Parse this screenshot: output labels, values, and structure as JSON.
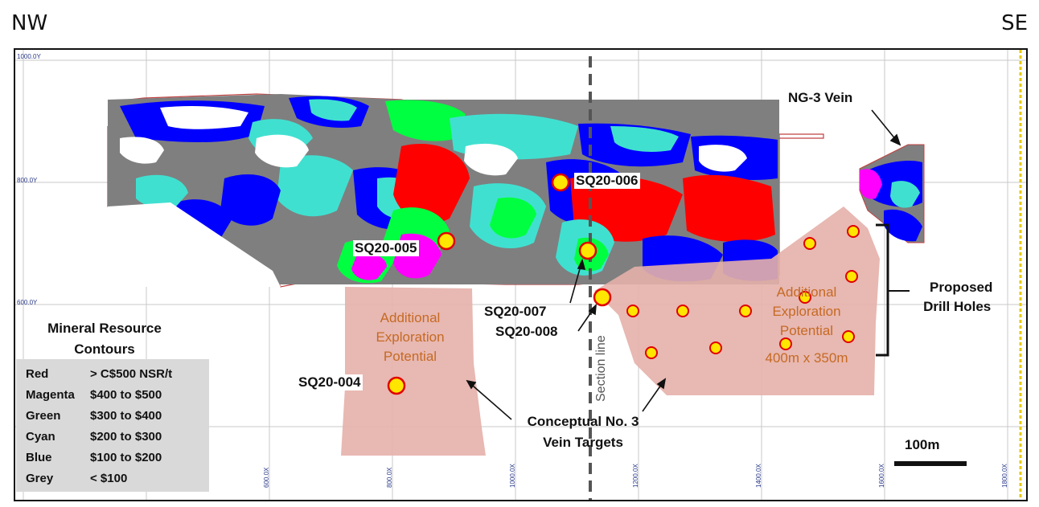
{
  "corners": {
    "left": "NW",
    "right": "SE"
  },
  "axes": {
    "y_ticks": [
      "1000.0Y",
      "800.0Y",
      "600.0Y"
    ],
    "x_ticks": [
      "600.0X",
      "800.0X",
      "1000.0X",
      "1200.0X",
      "1400.0X",
      "1600.0X",
      "1800.0X"
    ]
  },
  "labels": {
    "ng3_vein": "NG-3 Vein",
    "proposed": "Proposed",
    "drill_holes": "Drill Holes",
    "conceptual_1": "Conceptual No. 3",
    "conceptual_2": "Vein Targets",
    "section_line": "Section line",
    "scale": "100m"
  },
  "drill_holes": [
    "SQ20-004",
    "SQ20-005",
    "SQ20-006",
    "SQ20-007",
    "SQ20-008"
  ],
  "exploration_left": [
    "Additional",
    "Exploration",
    "Potential"
  ],
  "exploration_right": [
    "Additional",
    "Exploration",
    "Potential",
    "400m x 350m"
  ],
  "legend": {
    "title_1": "Mineral Resource",
    "title_2": "Contours",
    "rows": [
      {
        "name": "Red",
        "range": "> C$500 NSR/t",
        "color": "#ff0000"
      },
      {
        "name": "Magenta",
        "range": "$400 to $500",
        "color": "#ff00ff"
      },
      {
        "name": "Green",
        "range": "$300 to $400",
        "color": "#00ff40"
      },
      {
        "name": "Cyan",
        "range": "$200 to $300",
        "color": "#40e0d0"
      },
      {
        "name": "Blue",
        "range": "$100 to $200",
        "color": "#0000ff"
      },
      {
        "name": "Grey",
        "range": "< $100",
        "color": "#7f7f7f"
      }
    ]
  }
}
